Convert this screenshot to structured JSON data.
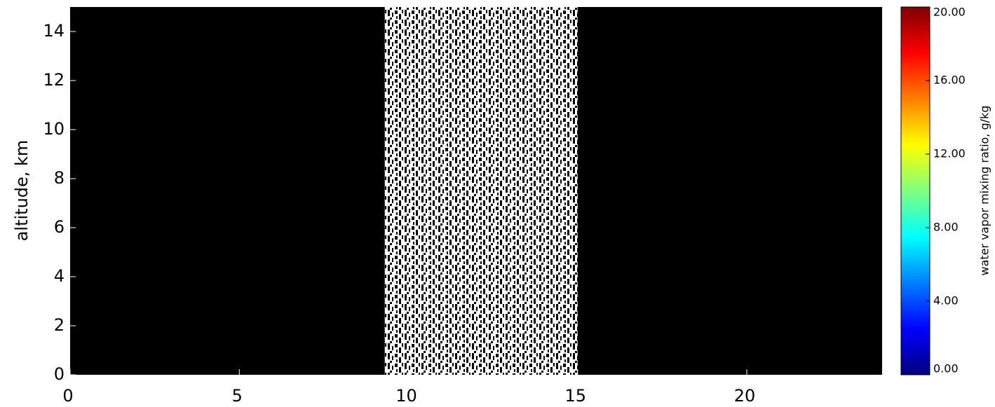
{
  "chart_data": {
    "type": "heatmap",
    "ylabel": "altitude, km",
    "xlim": [
      0,
      24
    ],
    "xticks": [
      0,
      5,
      10,
      15,
      20
    ],
    "ylim": [
      0,
      15
    ],
    "yticks": [
      0,
      2,
      4,
      6,
      8,
      10,
      12,
      14
    ],
    "background": "#000000",
    "data_xlim": [
      9.3,
      15.0
    ],
    "colorbar": {
      "label": "water vapor mixing ratio, g/kg",
      "clim": [
        0,
        20
      ],
      "ticks": [
        {
          "value": 0,
          "label": "0.00"
        },
        {
          "value": 4,
          "label": "4.00"
        },
        {
          "value": 8,
          "label": "8.00"
        },
        {
          "value": 12,
          "label": "12.00"
        },
        {
          "value": 16,
          "label": "16.00"
        },
        {
          "value": 20,
          "label": "20.00"
        }
      ],
      "colormap": [
        "#00007f",
        "#0000ff",
        "#007fff",
        "#00ffff",
        "#7fff7f",
        "#ffff00",
        "#ff7f00",
        "#ff0000",
        "#7f0000"
      ]
    }
  }
}
